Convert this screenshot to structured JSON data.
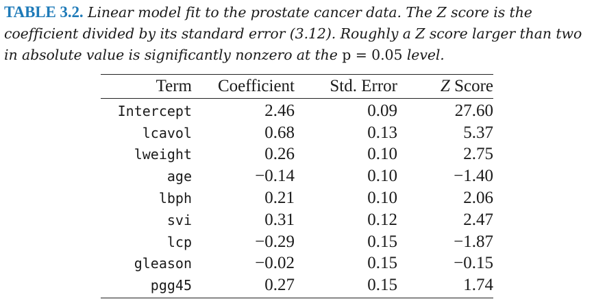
{
  "caption": {
    "label": "TABLE 3.2.",
    "line1_text": " Linear model fit to the prostate cancer data. The Z score is the",
    "line2_text": "coefficient divided by its standard error (3.12). Roughly a Z score larger than two",
    "line3_prefix": "in absolute value is significantly nonzero at the ",
    "line3_math": "p = 0.05",
    "line3_suffix": " level."
  },
  "table": {
    "headers": {
      "term": "Term",
      "coefficient": "Coefficient",
      "std_error": "Std. Error",
      "z_letter": "Z",
      "z_word": " Score"
    },
    "rows": [
      {
        "term": "Intercept",
        "coefficient": "2.46",
        "std_error": "0.09",
        "z_score": "27.60"
      },
      {
        "term": "lcavol",
        "coefficient": "0.68",
        "std_error": "0.13",
        "z_score": "5.37"
      },
      {
        "term": "lweight",
        "coefficient": "0.26",
        "std_error": "0.10",
        "z_score": "2.75"
      },
      {
        "term": "age",
        "coefficient": "−0.14",
        "std_error": "0.10",
        "z_score": "−1.40"
      },
      {
        "term": "lbph",
        "coefficient": "0.21",
        "std_error": "0.10",
        "z_score": "2.06"
      },
      {
        "term": "svi",
        "coefficient": "0.31",
        "std_error": "0.12",
        "z_score": "2.47"
      },
      {
        "term": "lcp",
        "coefficient": "−0.29",
        "std_error": "0.15",
        "z_score": "−1.87"
      },
      {
        "term": "gleason",
        "coefficient": "−0.02",
        "std_error": "0.15",
        "z_score": "−0.15"
      },
      {
        "term": "pgg45",
        "coefficient": "0.27",
        "std_error": "0.15",
        "z_score": "1.74"
      }
    ]
  },
  "colors": {
    "caption_label": "#1e7ab8",
    "text": "#1a1a1a"
  }
}
